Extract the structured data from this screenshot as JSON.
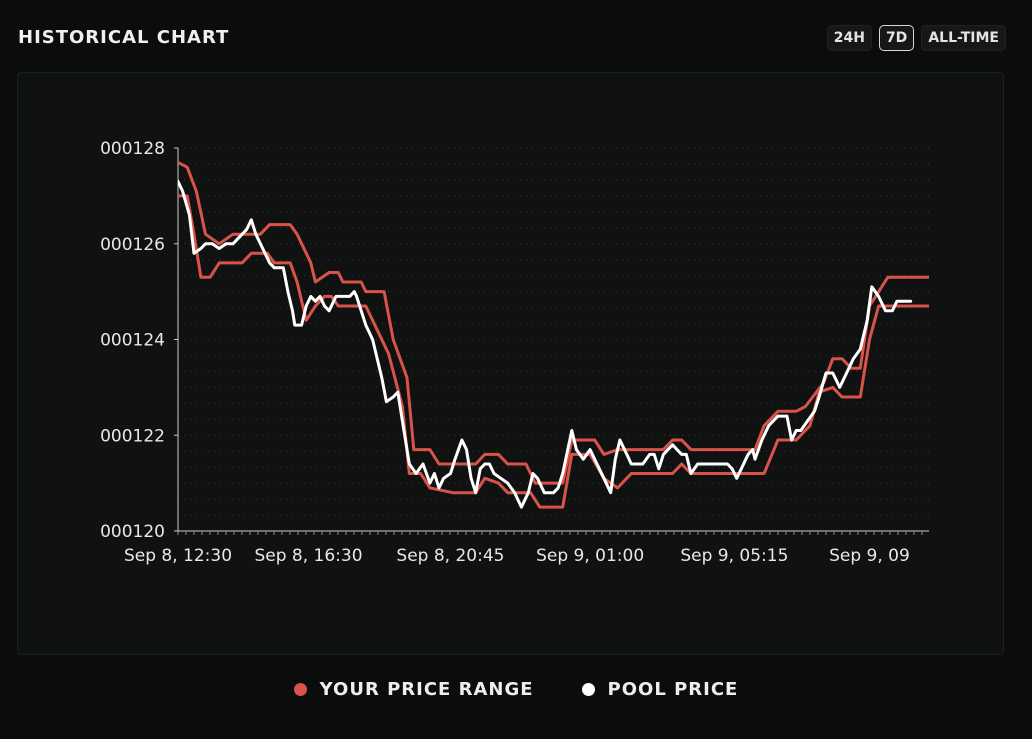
{
  "header": {
    "title": "HISTORICAL CHART",
    "tabs": [
      "24H",
      "7D",
      "ALL-TIME"
    ],
    "active_tab": "7D"
  },
  "legend": {
    "range_label": "YOUR PRICE RANGE",
    "pool_label": "POOL PRICE"
  },
  "colors": {
    "range": "#d9534a",
    "pool": "#ffffff",
    "background": "#0b0d0c"
  },
  "chart_data": {
    "type": "line",
    "x_ticks": [
      "Sep 8, 12:30",
      "Sep 8, 16:30",
      "Sep 8, 20:45",
      "Sep 9, 01:00",
      "Sep 9, 05:15",
      "Sep 9, 09"
    ],
    "y_ticks": [
      "000120",
      "000122",
      "000124",
      "000126",
      "000128"
    ],
    "ylim": [
      120,
      128
    ],
    "grid": true,
    "legend_position": "bottom",
    "series": [
      {
        "name": "YOUR PRICE RANGE",
        "role": "upper",
        "points": [
          [
            0,
            127.7
          ],
          [
            0.2,
            127.6
          ],
          [
            0.4,
            127.1
          ],
          [
            0.6,
            126.2
          ],
          [
            0.9,
            126.0
          ],
          [
            1.2,
            126.2
          ],
          [
            1.8,
            126.2
          ],
          [
            2.0,
            126.4
          ],
          [
            2.45,
            126.4
          ],
          [
            2.6,
            126.2
          ],
          [
            2.9,
            125.6
          ],
          [
            3.0,
            125.2
          ],
          [
            3.3,
            125.4
          ],
          [
            3.5,
            125.4
          ],
          [
            3.6,
            125.2
          ],
          [
            4.0,
            125.2
          ],
          [
            4.1,
            125.0
          ],
          [
            4.5,
            125.0
          ],
          [
            4.7,
            124.0
          ],
          [
            5.0,
            123.2
          ],
          [
            5.15,
            121.7
          ],
          [
            5.5,
            121.7
          ],
          [
            5.7,
            121.4
          ],
          [
            6.5,
            121.4
          ],
          [
            6.7,
            121.6
          ],
          [
            7.0,
            121.6
          ],
          [
            7.2,
            121.4
          ],
          [
            7.6,
            121.4
          ],
          [
            7.8,
            121.0
          ],
          [
            8.4,
            121.0
          ],
          [
            8.6,
            121.9
          ],
          [
            9.1,
            121.9
          ],
          [
            9.3,
            121.6
          ],
          [
            9.6,
            121.7
          ],
          [
            10.6,
            121.7
          ],
          [
            10.8,
            121.9
          ],
          [
            11.0,
            121.9
          ],
          [
            11.2,
            121.7
          ],
          [
            12.6,
            121.7
          ],
          [
            12.8,
            122.2
          ],
          [
            13.1,
            122.5
          ],
          [
            13.5,
            122.5
          ],
          [
            13.7,
            122.6
          ],
          [
            14.1,
            123.1
          ],
          [
            14.3,
            123.6
          ],
          [
            14.5,
            123.6
          ],
          [
            14.7,
            123.4
          ],
          [
            14.9,
            123.4
          ],
          [
            15.1,
            124.7
          ],
          [
            15.5,
            125.3
          ],
          [
            16.4,
            125.3
          ]
        ]
      },
      {
        "name": "YOUR PRICE RANGE",
        "role": "lower",
        "points": [
          [
            0,
            127.0
          ],
          [
            0.2,
            127.0
          ],
          [
            0.35,
            126.2
          ],
          [
            0.5,
            125.3
          ],
          [
            0.7,
            125.3
          ],
          [
            0.9,
            125.6
          ],
          [
            1.4,
            125.6
          ],
          [
            1.6,
            125.8
          ],
          [
            1.95,
            125.8
          ],
          [
            2.1,
            125.6
          ],
          [
            2.45,
            125.6
          ],
          [
            2.6,
            125.2
          ],
          [
            2.8,
            124.4
          ],
          [
            3.0,
            124.7
          ],
          [
            3.2,
            124.9
          ],
          [
            3.35,
            124.9
          ],
          [
            3.5,
            124.7
          ],
          [
            4.1,
            124.7
          ],
          [
            4.3,
            124.3
          ],
          [
            4.6,
            123.7
          ],
          [
            4.9,
            122.6
          ],
          [
            5.05,
            121.2
          ],
          [
            5.3,
            121.2
          ],
          [
            5.5,
            120.9
          ],
          [
            6.0,
            120.8
          ],
          [
            6.5,
            120.8
          ],
          [
            6.7,
            121.1
          ],
          [
            7.0,
            121.0
          ],
          [
            7.2,
            120.8
          ],
          [
            7.7,
            120.8
          ],
          [
            7.9,
            120.5
          ],
          [
            8.4,
            120.5
          ],
          [
            8.6,
            121.6
          ],
          [
            9.0,
            121.6
          ],
          [
            9.3,
            121.1
          ],
          [
            9.6,
            120.9
          ],
          [
            9.9,
            121.2
          ],
          [
            10.8,
            121.2
          ],
          [
            11.0,
            121.4
          ],
          [
            11.2,
            121.2
          ],
          [
            12.8,
            121.2
          ],
          [
            13.1,
            121.9
          ],
          [
            13.5,
            121.9
          ],
          [
            13.8,
            122.2
          ],
          [
            14.0,
            122.9
          ],
          [
            14.3,
            123.0
          ],
          [
            14.5,
            122.8
          ],
          [
            14.9,
            122.8
          ],
          [
            15.1,
            124.0
          ],
          [
            15.3,
            124.7
          ],
          [
            16.4,
            124.7
          ]
        ]
      },
      {
        "name": "POOL PRICE",
        "role": "pool",
        "points": [
          [
            0,
            127.3
          ],
          [
            0.1,
            127.1
          ],
          [
            0.25,
            126.6
          ],
          [
            0.35,
            125.8
          ],
          [
            0.5,
            125.9
          ],
          [
            0.6,
            126.0
          ],
          [
            0.75,
            126.0
          ],
          [
            0.9,
            125.9
          ],
          [
            1.05,
            126.0
          ],
          [
            1.2,
            126.0
          ],
          [
            1.4,
            126.2
          ],
          [
            1.5,
            126.3
          ],
          [
            1.6,
            126.5
          ],
          [
            1.7,
            126.2
          ],
          [
            1.85,
            125.9
          ],
          [
            2.0,
            125.6
          ],
          [
            2.1,
            125.5
          ],
          [
            2.3,
            125.5
          ],
          [
            2.4,
            125.0
          ],
          [
            2.5,
            124.6
          ],
          [
            2.55,
            124.3
          ],
          [
            2.7,
            124.3
          ],
          [
            2.8,
            124.7
          ],
          [
            2.9,
            124.9
          ],
          [
            3.0,
            124.8
          ],
          [
            3.1,
            124.9
          ],
          [
            3.2,
            124.7
          ],
          [
            3.3,
            124.6
          ],
          [
            3.45,
            124.9
          ],
          [
            3.6,
            124.9
          ],
          [
            3.75,
            124.9
          ],
          [
            3.85,
            125.0
          ],
          [
            3.9,
            124.9
          ],
          [
            4.0,
            124.6
          ],
          [
            4.1,
            124.3
          ],
          [
            4.25,
            124.0
          ],
          [
            4.35,
            123.6
          ],
          [
            4.45,
            123.2
          ],
          [
            4.55,
            122.7
          ],
          [
            4.7,
            122.8
          ],
          [
            4.8,
            122.9
          ],
          [
            5.05,
            121.4
          ],
          [
            5.2,
            121.2
          ],
          [
            5.35,
            121.4
          ],
          [
            5.5,
            121.0
          ],
          [
            5.6,
            121.2
          ],
          [
            5.7,
            120.9
          ],
          [
            5.8,
            121.1
          ],
          [
            5.95,
            121.2
          ],
          [
            6.05,
            121.5
          ],
          [
            6.2,
            121.9
          ],
          [
            6.3,
            121.7
          ],
          [
            6.4,
            121.1
          ],
          [
            6.5,
            120.8
          ],
          [
            6.6,
            121.3
          ],
          [
            6.7,
            121.4
          ],
          [
            6.8,
            121.4
          ],
          [
            6.9,
            121.2
          ],
          [
            7.05,
            121.1
          ],
          [
            7.2,
            121.0
          ],
          [
            7.35,
            120.8
          ],
          [
            7.5,
            120.5
          ],
          [
            7.65,
            120.8
          ],
          [
            7.75,
            121.2
          ],
          [
            7.85,
            121.1
          ],
          [
            8.0,
            120.8
          ],
          [
            8.2,
            120.8
          ],
          [
            8.3,
            120.9
          ],
          [
            8.4,
            121.2
          ],
          [
            8.6,
            122.1
          ],
          [
            8.7,
            121.7
          ],
          [
            8.85,
            121.5
          ],
          [
            9.0,
            121.7
          ],
          [
            9.15,
            121.4
          ],
          [
            9.3,
            121.1
          ],
          [
            9.45,
            120.8
          ],
          [
            9.55,
            121.5
          ],
          [
            9.65,
            121.9
          ],
          [
            9.8,
            121.6
          ],
          [
            9.9,
            121.4
          ],
          [
            10.0,
            121.4
          ],
          [
            10.15,
            121.4
          ],
          [
            10.3,
            121.6
          ],
          [
            10.4,
            121.6
          ],
          [
            10.5,
            121.3
          ],
          [
            10.6,
            121.6
          ],
          [
            10.7,
            121.7
          ],
          [
            10.8,
            121.8
          ],
          [
            10.9,
            121.7
          ],
          [
            11.0,
            121.6
          ],
          [
            11.1,
            121.6
          ],
          [
            11.2,
            121.2
          ],
          [
            11.35,
            121.4
          ],
          [
            11.5,
            121.4
          ],
          [
            11.7,
            121.4
          ],
          [
            11.85,
            121.4
          ],
          [
            12.0,
            121.4
          ],
          [
            12.1,
            121.3
          ],
          [
            12.2,
            121.1
          ],
          [
            12.3,
            121.3
          ],
          [
            12.45,
            121.6
          ],
          [
            12.55,
            121.7
          ],
          [
            12.6,
            121.5
          ],
          [
            12.75,
            121.9
          ],
          [
            12.9,
            122.2
          ],
          [
            13.1,
            122.4
          ],
          [
            13.3,
            122.4
          ],
          [
            13.4,
            121.9
          ],
          [
            13.5,
            122.1
          ],
          [
            13.6,
            122.1
          ],
          [
            13.75,
            122.3
          ],
          [
            13.9,
            122.5
          ],
          [
            14.0,
            122.8
          ],
          [
            14.15,
            123.3
          ],
          [
            14.3,
            123.3
          ],
          [
            14.45,
            123.0
          ],
          [
            14.6,
            123.3
          ],
          [
            14.75,
            123.6
          ],
          [
            14.9,
            123.8
          ],
          [
            15.05,
            124.4
          ],
          [
            15.15,
            125.1
          ],
          [
            15.3,
            124.9
          ],
          [
            15.45,
            124.6
          ],
          [
            15.6,
            124.6
          ],
          [
            15.7,
            124.8
          ],
          [
            16.0,
            124.8
          ]
        ]
      }
    ]
  }
}
